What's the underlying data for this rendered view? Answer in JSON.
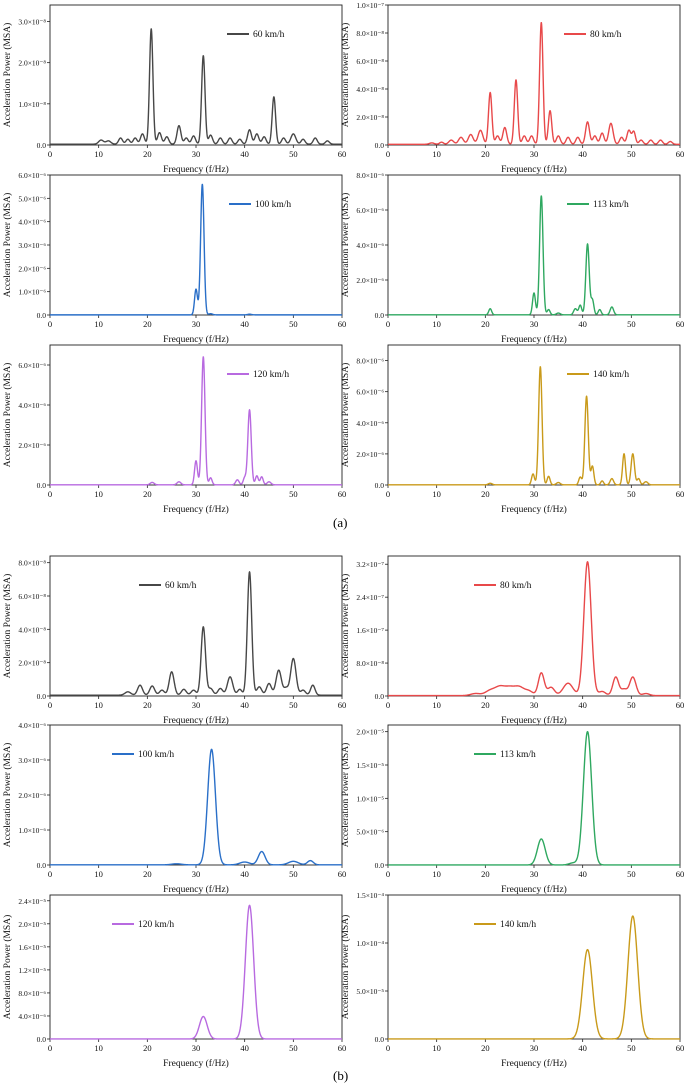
{
  "figure": {
    "part_a_label": "(a)",
    "part_b_label": "(b)"
  },
  "chart_data": [
    {
      "type": "line",
      "legend": "60 km/h",
      "color": "#474747",
      "xlabel": "Frequency (f/Hz)",
      "ylabel": "Acceleration Power (MSA)",
      "xlim": [
        0,
        60
      ],
      "xticks": [
        0,
        10,
        20,
        30,
        40,
        50,
        60
      ],
      "ylim": [
        0,
        3.4e-08
      ],
      "yticks": [
        0,
        1e-08,
        2e-08,
        3e-08
      ],
      "ytick_labels": [
        "0.0",
        "1.0×10⁻⁸",
        "2.0×10⁻⁸",
        "3.0×10⁻⁸"
      ],
      "peaks": [
        [
          10.5,
          1e-09,
          0.5
        ],
        [
          12,
          8e-10,
          0.5
        ],
        [
          14.5,
          1.5e-09,
          0.4
        ],
        [
          16,
          1.2e-09,
          0.4
        ],
        [
          17.5,
          1.5e-09,
          0.4
        ],
        [
          19,
          2.5e-09,
          0.4
        ],
        [
          20.8,
          2.8e-08,
          0.35
        ],
        [
          22.5,
          2.8e-09,
          0.4
        ],
        [
          24,
          1.8e-09,
          0.4
        ],
        [
          26.5,
          4.5e-09,
          0.4
        ],
        [
          28,
          1.5e-09,
          0.4
        ],
        [
          29.5,
          2e-09,
          0.4
        ],
        [
          31.5,
          2.15e-08,
          0.35
        ],
        [
          33,
          2.2e-09,
          0.4
        ],
        [
          35,
          1.5e-09,
          0.4
        ],
        [
          37,
          1.5e-09,
          0.4
        ],
        [
          39,
          1.2e-09,
          0.4
        ],
        [
          41,
          3.5e-09,
          0.4
        ],
        [
          42.5,
          2.5e-09,
          0.4
        ],
        [
          44,
          1.8e-09,
          0.4
        ],
        [
          46,
          1.15e-08,
          0.35
        ],
        [
          48,
          1.5e-09,
          0.4
        ],
        [
          50,
          2.5e-09,
          0.5
        ],
        [
          52,
          1.2e-09,
          0.4
        ],
        [
          54.5,
          1.5e-09,
          0.4
        ],
        [
          57,
          8e-10,
          0.4
        ]
      ],
      "baseline": [
        2e-10
      ]
    },
    {
      "type": "line",
      "legend": "80 km/h",
      "color": "#e8494a",
      "xlabel": "Frequency (f/Hz)",
      "ylabel": "Acceleration Power (MSA)",
      "xlim": [
        0,
        60
      ],
      "xticks": [
        0,
        10,
        20,
        30,
        40,
        50,
        60
      ],
      "ylim": [
        0,
        1e-07
      ],
      "yticks": [
        0,
        2e-08,
        4e-08,
        6e-08,
        8e-08,
        1e-07
      ],
      "ytick_labels": [
        "0.0",
        "2.0×10⁻⁸",
        "4.0×10⁻⁸",
        "6.0×10⁻⁸",
        "8.0×10⁻⁸",
        "1.0×10⁻⁷"
      ],
      "peaks": [
        [
          9,
          1e-09,
          0.5
        ],
        [
          11,
          1.5e-09,
          0.4
        ],
        [
          13,
          3e-09,
          0.5
        ],
        [
          15,
          5e-09,
          0.5
        ],
        [
          17,
          7e-09,
          0.5
        ],
        [
          19,
          1e-08,
          0.5
        ],
        [
          21,
          3.7e-08,
          0.35
        ],
        [
          22.5,
          6e-09,
          0.4
        ],
        [
          24,
          1.2e-08,
          0.4
        ],
        [
          26.3,
          4.6e-08,
          0.35
        ],
        [
          28,
          6e-09,
          0.4
        ],
        [
          29.5,
          6e-09,
          0.4
        ],
        [
          31.5,
          8.7e-08,
          0.35
        ],
        [
          33.3,
          2.4e-08,
          0.35
        ],
        [
          35,
          6e-09,
          0.4
        ],
        [
          37,
          5e-09,
          0.4
        ],
        [
          39,
          5e-09,
          0.4
        ],
        [
          41,
          1.6e-08,
          0.4
        ],
        [
          42.5,
          6e-09,
          0.4
        ],
        [
          44,
          8e-09,
          0.4
        ],
        [
          45.8,
          1.5e-08,
          0.45
        ],
        [
          48,
          5e-09,
          0.4
        ],
        [
          49.5,
          1e-08,
          0.4
        ],
        [
          50.5,
          9e-09,
          0.35
        ],
        [
          52,
          3e-09,
          0.4
        ],
        [
          54,
          3e-09,
          0.4
        ],
        [
          56,
          3e-09,
          0.4
        ],
        [
          58,
          2e-09,
          0.4
        ]
      ],
      "baseline": [
        5e-10
      ]
    },
    {
      "type": "line",
      "legend": "100 km/h",
      "color": "#2a6fc8",
      "xlabel": "Frequency (f/Hz)",
      "ylabel": "Acceleration Power (MSA)",
      "xlim": [
        0,
        60
      ],
      "xticks": [
        0,
        10,
        20,
        30,
        40,
        50,
        60
      ],
      "ylim": [
        0,
        6e-06
      ],
      "yticks": [
        0,
        1e-06,
        2e-06,
        3e-06,
        4e-06,
        5e-06,
        6e-06
      ],
      "ytick_labels": [
        "0.0",
        "1.0×10⁻⁶",
        "2.0×10⁻⁶",
        "3.0×10⁻⁶",
        "4.0×10⁻⁶",
        "5.0×10⁻⁶",
        "6.0×10⁻⁶"
      ],
      "peaks": [
        [
          30,
          1.1e-06,
          0.3
        ],
        [
          31.3,
          5.6e-06,
          0.35
        ],
        [
          33,
          5e-08,
          0.4
        ],
        [
          41,
          3e-08,
          0.4
        ]
      ],
      "baseline": [
        5e-09
      ]
    },
    {
      "type": "line",
      "legend": "113 km/h",
      "color": "#2fa860",
      "xlabel": "Frequency (f/Hz)",
      "ylabel": "Acceleration Power (MSA)",
      "xlim": [
        0,
        60
      ],
      "xticks": [
        0,
        10,
        20,
        30,
        40,
        50,
        60
      ],
      "ylim": [
        0,
        8e-06
      ],
      "yticks": [
        0,
        2e-06,
        4e-06,
        6e-06,
        8e-06
      ],
      "ytick_labels": [
        "0.0",
        "2.0×10⁻⁶",
        "4.0×10⁻⁶",
        "6.0×10⁻⁶",
        "8.0×10⁻⁶"
      ],
      "peaks": [
        [
          21,
          3.5e-07,
          0.3
        ],
        [
          30,
          1.25e-06,
          0.3
        ],
        [
          31.5,
          6.8e-06,
          0.35
        ],
        [
          33,
          3e-07,
          0.3
        ],
        [
          35,
          1e-07,
          0.4
        ],
        [
          38.5,
          3.5e-07,
          0.35
        ],
        [
          39.5,
          5.5e-07,
          0.3
        ],
        [
          41,
          4.05e-06,
          0.35
        ],
        [
          42,
          8.5e-07,
          0.3
        ],
        [
          43.5,
          3e-07,
          0.3
        ],
        [
          46,
          4.5e-07,
          0.35
        ]
      ],
      "baseline": [
        1e-08
      ]
    },
    {
      "type": "line",
      "legend": "120 km/h",
      "color": "#b86ae0",
      "xlabel": "Frequency (f/Hz)",
      "ylabel": "Acceleration Power (MSA)",
      "xlim": [
        0,
        60
      ],
      "xticks": [
        0,
        10,
        20,
        30,
        40,
        50,
        60
      ],
      "ylim": [
        0,
        7e-06
      ],
      "yticks": [
        0,
        2e-06,
        4e-06,
        6e-06
      ],
      "ytick_labels": [
        "0.0",
        "2.0×10⁻⁶",
        "4.0×10⁻⁶",
        "6.0×10⁻⁶"
      ],
      "peaks": [
        [
          21,
          1.2e-07,
          0.4
        ],
        [
          26.5,
          1.5e-07,
          0.4
        ],
        [
          30,
          1.2e-06,
          0.3
        ],
        [
          31.5,
          6.4e-06,
          0.35
        ],
        [
          33,
          3.5e-07,
          0.3
        ],
        [
          38.5,
          2.5e-07,
          0.35
        ],
        [
          40,
          3.5e-07,
          0.3
        ],
        [
          41,
          3.75e-06,
          0.35
        ],
        [
          42.5,
          4.5e-07,
          0.3
        ],
        [
          43.5,
          4e-07,
          0.3
        ],
        [
          45,
          1.5e-07,
          0.4
        ]
      ],
      "baseline": [
        1e-08
      ]
    },
    {
      "type": "line",
      "legend": "140 km/h",
      "color": "#c99a1a",
      "xlabel": "Frequency (f/Hz)",
      "ylabel": "Acceleration Power (MSA)",
      "xlim": [
        0,
        60
      ],
      "xticks": [
        0,
        10,
        20,
        30,
        40,
        50,
        60
      ],
      "ylim": [
        0,
        9e-06
      ],
      "yticks": [
        0,
        2e-06,
        4e-06,
        6e-06,
        8e-06
      ],
      "ytick_labels": [
        "0.0",
        "2.0×10⁻⁶",
        "4.0×10⁻⁶",
        "6.0×10⁻⁶",
        "8.0×10⁻⁶"
      ],
      "peaks": [
        [
          21,
          1e-07,
          0.4
        ],
        [
          29.8,
          7e-07,
          0.3
        ],
        [
          31.3,
          7.6e-06,
          0.35
        ],
        [
          33,
          5.5e-07,
          0.3
        ],
        [
          35,
          1.5e-07,
          0.4
        ],
        [
          39.5,
          5e-07,
          0.3
        ],
        [
          40.8,
          5.7e-06,
          0.35
        ],
        [
          42,
          1.2e-06,
          0.3
        ],
        [
          44,
          2.5e-07,
          0.3
        ],
        [
          46,
          4e-07,
          0.35
        ],
        [
          48.5,
          2e-06,
          0.3
        ],
        [
          50.3,
          2e-06,
          0.35
        ],
        [
          51.5,
          4e-07,
          0.3
        ],
        [
          53,
          2e-07,
          0.4
        ]
      ],
      "baseline": [
        1e-08
      ]
    },
    {
      "type": "line",
      "legend": "60 km/h",
      "color": "#474747",
      "xlabel": "Frequency (f/Hz)",
      "ylabel": "Acceleration Power (MSA)",
      "xlim": [
        0,
        60
      ],
      "xticks": [
        0,
        10,
        20,
        30,
        40,
        50,
        60
      ],
      "ylim": [
        0,
        8.4e-08
      ],
      "yticks": [
        0,
        2e-08,
        4e-08,
        6e-08,
        8e-08
      ],
      "ytick_labels": [
        "0.0",
        "2.0×10⁻⁸",
        "4.0×10⁻⁸",
        "6.0×10⁻⁸",
        "8.0×10⁻⁸"
      ],
      "peaks": [
        [
          16,
          2e-09,
          0.6
        ],
        [
          18.5,
          6e-09,
          0.5
        ],
        [
          21,
          5.5e-09,
          0.5
        ],
        [
          23,
          3e-09,
          0.5
        ],
        [
          25,
          1.4e-08,
          0.5
        ],
        [
          27.5,
          3.5e-09,
          0.5
        ],
        [
          29.5,
          3e-09,
          0.5
        ],
        [
          31.5,
          4.1e-08,
          0.45
        ],
        [
          33,
          4e-09,
          0.5
        ],
        [
          35,
          4e-09,
          0.5
        ],
        [
          37,
          1.1e-08,
          0.55
        ],
        [
          39,
          3.5e-09,
          0.45
        ],
        [
          41,
          7.4e-08,
          0.45
        ],
        [
          43,
          5e-09,
          0.5
        ],
        [
          45,
          7e-09,
          0.5
        ],
        [
          47,
          1.5e-08,
          0.55
        ],
        [
          48.5,
          4e-09,
          0.45
        ],
        [
          50,
          2.2e-08,
          0.55
        ],
        [
          52,
          3e-09,
          0.5
        ],
        [
          54,
          6e-09,
          0.45
        ]
      ],
      "baseline": [
        5e-10
      ]
    },
    {
      "type": "line",
      "legend": "80 km/h",
      "color": "#e8494a",
      "xlabel": "Frequency (f/Hz)",
      "ylabel": "Acceleration Power (MSA)",
      "xlim": [
        0,
        60
      ],
      "xticks": [
        0,
        10,
        20,
        30,
        40,
        50,
        60
      ],
      "ylim": [
        0,
        3.4e-07
      ],
      "yticks": [
        0,
        8e-08,
        1.6e-07,
        2.4e-07,
        3.2e-07
      ],
      "ytick_labels": [
        "0.0",
        "8.0×10⁻⁸",
        "1.6×10⁻⁷",
        "2.4×10⁻⁷",
        "3.2×10⁻⁷"
      ],
      "peaks": [
        [
          18,
          5e-09,
          1.0
        ],
        [
          21,
          1.2e-08,
          1.0
        ],
        [
          23,
          2e-08,
          1.0
        ],
        [
          25,
          1.8e-08,
          1.0
        ],
        [
          27,
          2e-08,
          1.0
        ],
        [
          29,
          1e-08,
          0.8
        ],
        [
          31.5,
          5.5e-08,
          0.6
        ],
        [
          33.5,
          2e-08,
          0.7
        ],
        [
          37,
          3e-08,
          1.0
        ],
        [
          41,
          3.25e-07,
          0.75
        ],
        [
          44,
          1e-08,
          0.7
        ],
        [
          46.8,
          4.5e-08,
          0.6
        ],
        [
          48.5,
          1.5e-08,
          0.6
        ],
        [
          50.3,
          4.5e-08,
          0.65
        ],
        [
          53,
          5e-09,
          0.7
        ]
      ],
      "baseline": [
        1e-09
      ]
    },
    {
      "type": "line",
      "legend": "100 km/h",
      "color": "#2a6fc8",
      "xlabel": "Frequency (f/Hz)",
      "ylabel": "Acceleration Power (MSA)",
      "xlim": [
        0,
        60
      ],
      "xticks": [
        0,
        10,
        20,
        30,
        40,
        50,
        60
      ],
      "ylim": [
        0,
        4e-06
      ],
      "yticks": [
        0,
        1e-06,
        2e-06,
        3e-06,
        4e-06
      ],
      "ytick_labels": [
        "0.0",
        "1.0×10⁻⁶",
        "2.0×10⁻⁶",
        "3.0×10⁻⁶",
        "4.0×10⁻⁶"
      ],
      "peaks": [
        [
          26,
          3e-08,
          1.0
        ],
        [
          33.2,
          3.3e-06,
          0.8
        ],
        [
          40,
          8e-08,
          1.0
        ],
        [
          43.5,
          3.8e-07,
          0.7
        ],
        [
          50,
          1e-07,
          1.0
        ],
        [
          53.5,
          1.2e-07,
          0.6
        ]
      ],
      "baseline": [
        5e-09
      ]
    },
    {
      "type": "line",
      "legend": "113 km/h",
      "color": "#2fa860",
      "xlabel": "Frequency (f/Hz)",
      "ylabel": "Acceleration Power (MSA)",
      "xlim": [
        0,
        60
      ],
      "xticks": [
        0,
        10,
        20,
        30,
        40,
        50,
        60
      ],
      "ylim": [
        0,
        2.1e-05
      ],
      "yticks": [
        0,
        5e-06,
        1e-05,
        1.5e-05,
        2e-05
      ],
      "ytick_labels": [
        "0.0",
        "5.0×10⁻⁶",
        "1.0×10⁻⁵",
        "1.5×10⁻⁵",
        "2.0×10⁻⁵"
      ],
      "peaks": [
        [
          31.5,
          3.9e-06,
          0.8
        ],
        [
          38,
          3e-07,
          0.8
        ],
        [
          41,
          2e-05,
          0.85
        ]
      ],
      "baseline": [
        5e-09
      ]
    },
    {
      "type": "line",
      "legend": "120 km/h",
      "color": "#b86ae0",
      "xlabel": "Frequency (f/Hz)",
      "ylabel": "Acceleration Power (MSA)",
      "xlim": [
        0,
        60
      ],
      "xticks": [
        0,
        10,
        20,
        30,
        40,
        50,
        60
      ],
      "ylim": [
        0,
        2.5e-05
      ],
      "yticks": [
        0,
        4e-06,
        8e-06,
        1.2e-05,
        1.6e-05,
        2e-05,
        2.4e-05
      ],
      "ytick_labels": [
        "0.0",
        "4.0×10⁻⁶",
        "8.0×10⁻⁶",
        "1.2×10⁻⁵",
        "1.6×10⁻⁵",
        "2.0×10⁻⁵",
        "2.4×10⁻⁵"
      ],
      "peaks": [
        [
          31.5,
          3.9e-06,
          0.8
        ],
        [
          41,
          2.32e-05,
          0.85
        ]
      ],
      "baseline": [
        5e-09
      ]
    },
    {
      "type": "line",
      "legend": "140 km/h",
      "color": "#c99a1a",
      "xlabel": "Frequency (f/Hz)",
      "ylabel": "Acceleration Power (MSA)",
      "xlim": [
        0,
        60
      ],
      "xticks": [
        0,
        10,
        20,
        30,
        40,
        50,
        60
      ],
      "ylim": [
        0,
        0.00015
      ],
      "yticks": [
        0,
        5e-05,
        0.0001,
        0.00015
      ],
      "ytick_labels": [
        "0.0",
        "5.0×10⁻⁵",
        "1.0×10⁻⁴",
        "1.5×10⁻⁴"
      ],
      "peaks": [
        [
          41,
          9.3e-05,
          1.0
        ],
        [
          50.3,
          0.000128,
          1.0
        ]
      ],
      "baseline": [
        1e-07
      ]
    }
  ]
}
